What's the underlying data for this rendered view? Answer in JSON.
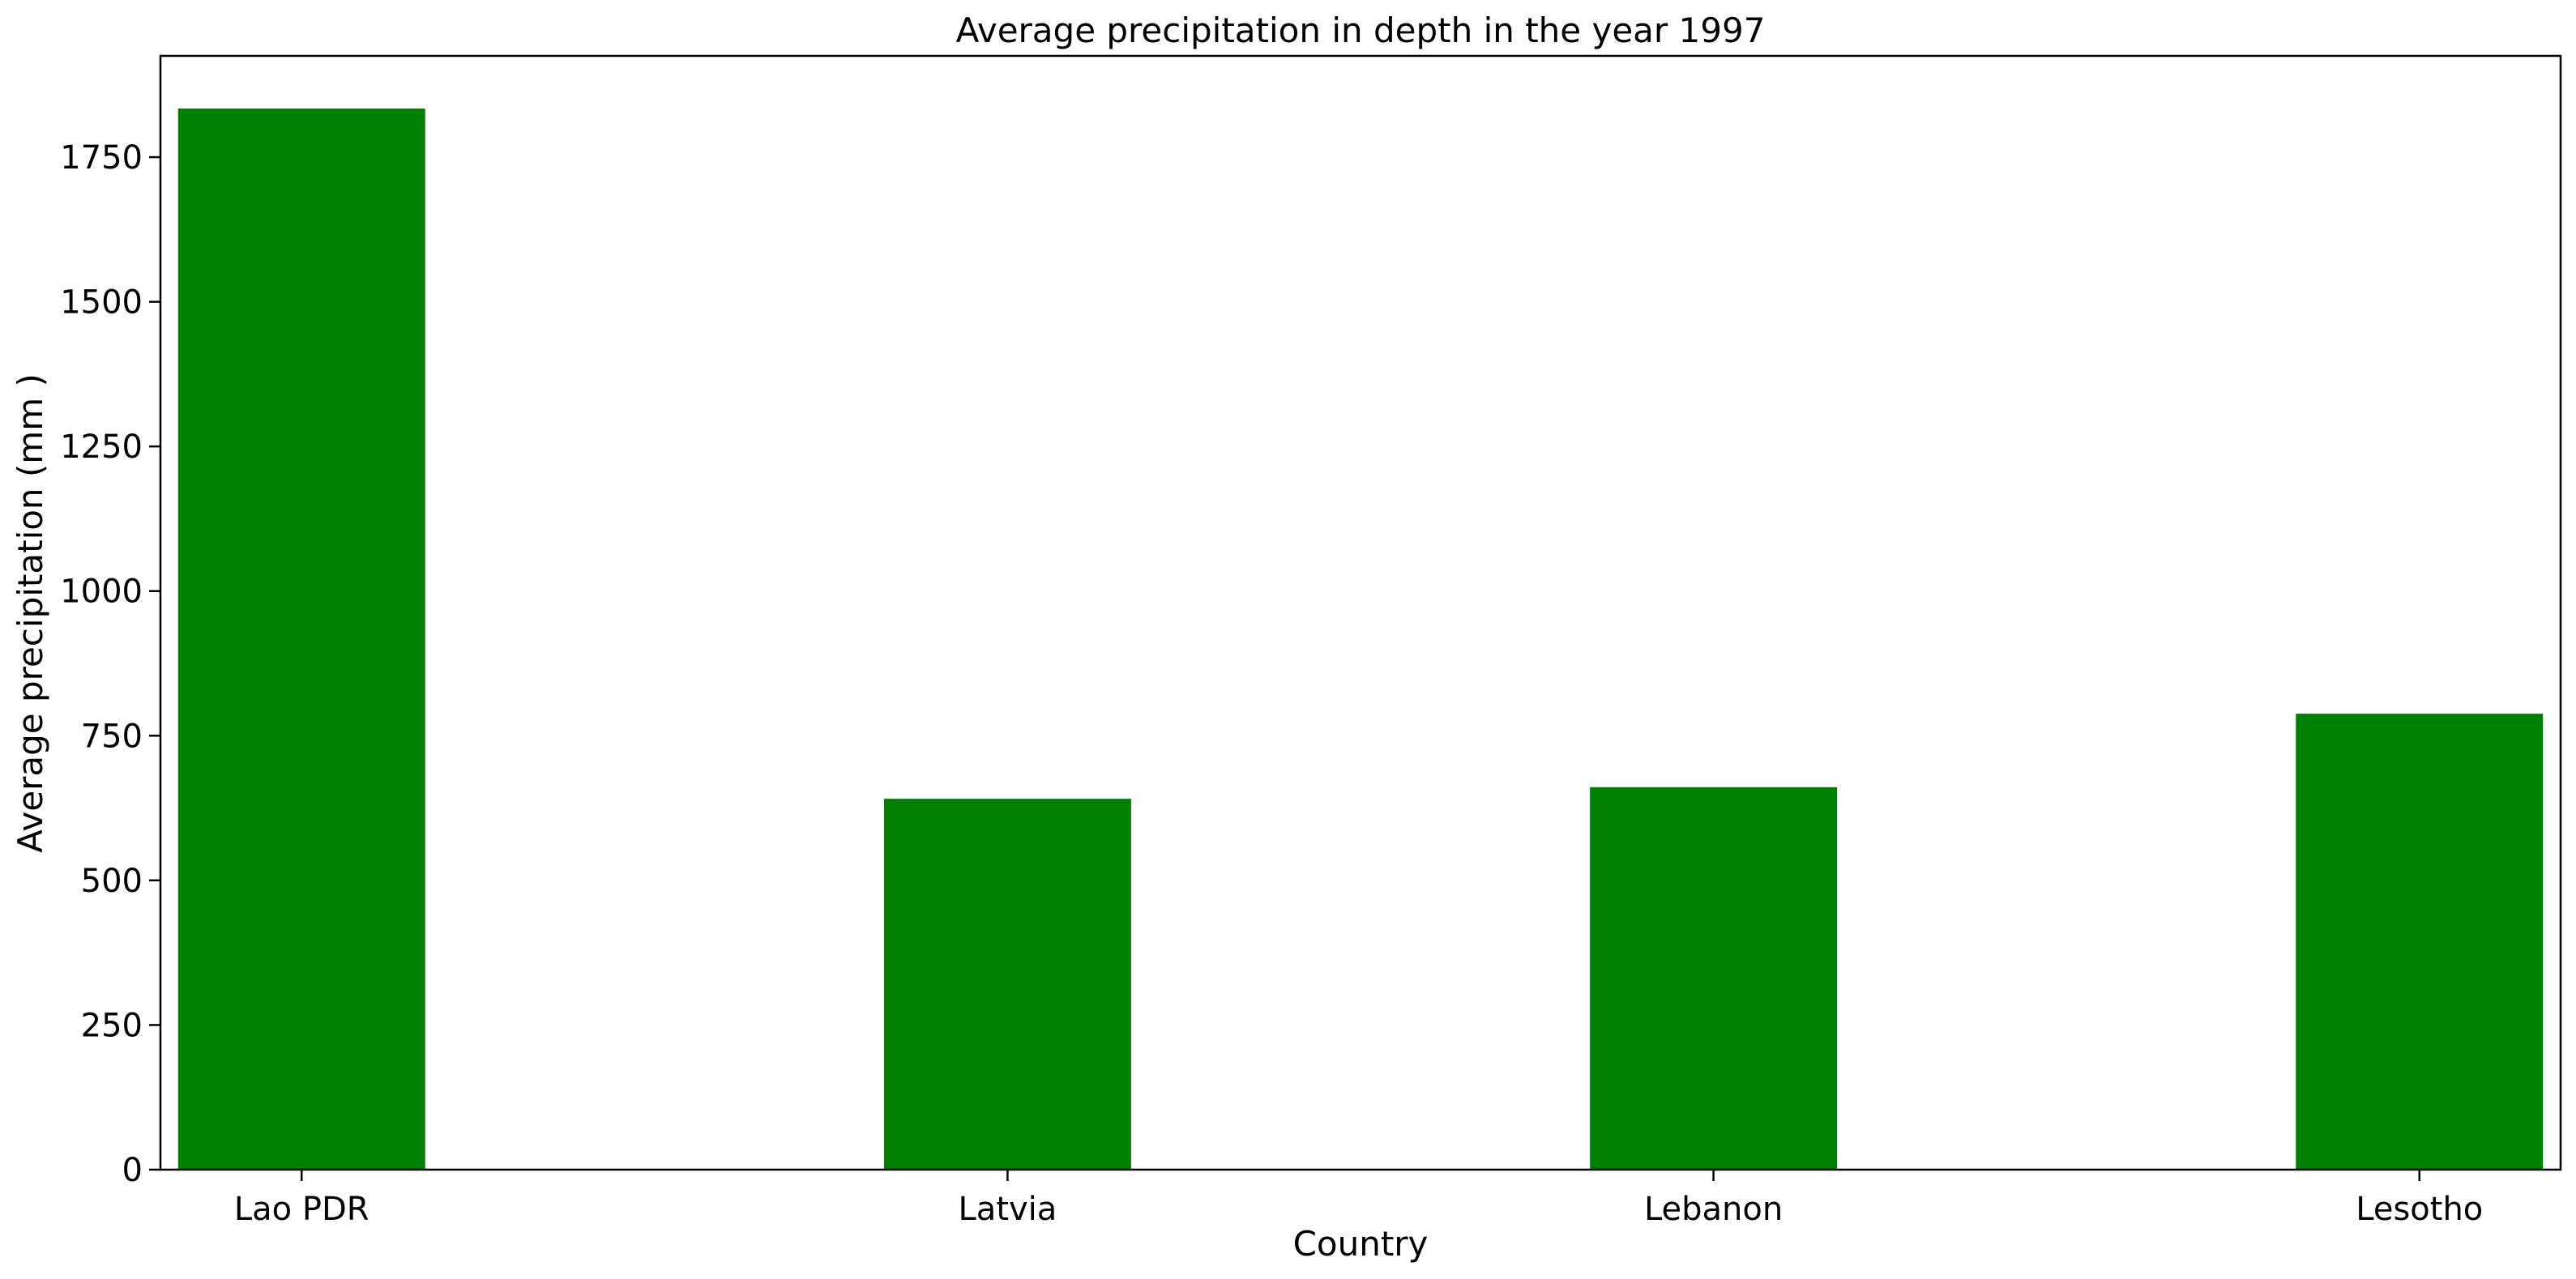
{
  "chart_data": {
    "type": "bar",
    "title": "Average precipitation in depth in the year 1997",
    "xlabel": "Country",
    "ylabel": "Average precipitation (mm )",
    "categories": [
      "Lao PDR",
      "Latvia",
      "Lebanon",
      "Lesotho"
    ],
    "values": [
      1834,
      641,
      661,
      788
    ],
    "ylim": [
      0,
      1925
    ],
    "yticks": [
      0,
      250,
      500,
      750,
      1000,
      1250,
      1500,
      1750
    ],
    "ytick_labels": [
      "0",
      "250",
      "500",
      "750",
      "1000",
      "1250",
      "1500",
      "1750"
    ],
    "bar_color": "#008000",
    "grid": false,
    "legend": "none"
  }
}
